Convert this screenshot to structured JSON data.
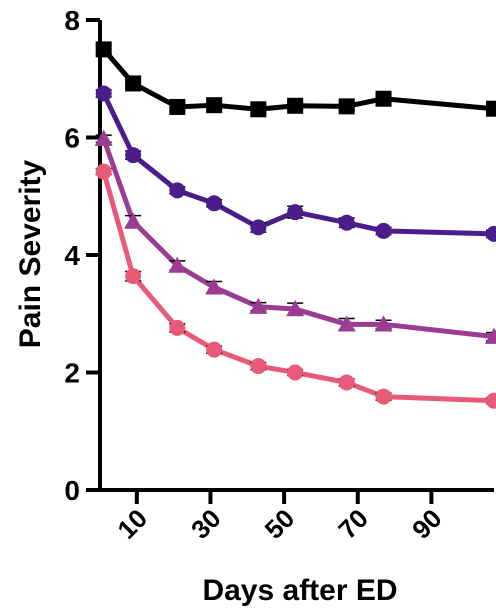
{
  "chart_data": {
    "type": "line",
    "title": "",
    "xlabel": "Days after ED",
    "ylabel": "Pain Severity",
    "xlim": [
      0,
      107
    ],
    "ylim": [
      0,
      8
    ],
    "x_ticks": [
      10,
      30,
      50,
      70,
      90
    ],
    "y_ticks": [
      0,
      2,
      4,
      6,
      8
    ],
    "grid": false,
    "legend": "none",
    "x": [
      1,
      9,
      21,
      31,
      43,
      53,
      67,
      77,
      107
    ],
    "series": [
      {
        "color": "#000000",
        "marker": "square",
        "values": [
          7.5,
          6.92,
          6.52,
          6.55,
          6.48,
          6.54,
          6.53,
          6.66,
          6.49
        ],
        "errors": [
          0.08,
          0.06,
          0.07,
          0.06,
          0.07,
          0.06,
          0.06,
          0.08,
          0.05
        ]
      },
      {
        "color": "#4b1d8a",
        "marker": "circle",
        "values": [
          6.75,
          5.7,
          5.1,
          4.88,
          4.47,
          4.73,
          4.55,
          4.41,
          4.36
        ],
        "errors": [
          0.06,
          0.07,
          0.06,
          0.06,
          0.08,
          0.1,
          0.08,
          0.06,
          0.06
        ]
      },
      {
        "color": "#9b3c94",
        "marker": "triangle",
        "values": [
          5.98,
          4.57,
          3.82,
          3.45,
          3.12,
          3.08,
          2.82,
          2.82,
          2.61
        ],
        "errors": [
          0.06,
          0.1,
          0.08,
          0.1,
          0.07,
          0.1,
          0.1,
          0.07,
          0.07
        ]
      },
      {
        "color": "#e75a78",
        "marker": "circle",
        "values": [
          5.42,
          3.64,
          2.76,
          2.39,
          2.11,
          2.0,
          1.83,
          1.59,
          1.52
        ],
        "errors": [
          0.05,
          0.08,
          0.07,
          0.06,
          0.06,
          0.05,
          0.06,
          0.06,
          0.05
        ]
      }
    ]
  }
}
